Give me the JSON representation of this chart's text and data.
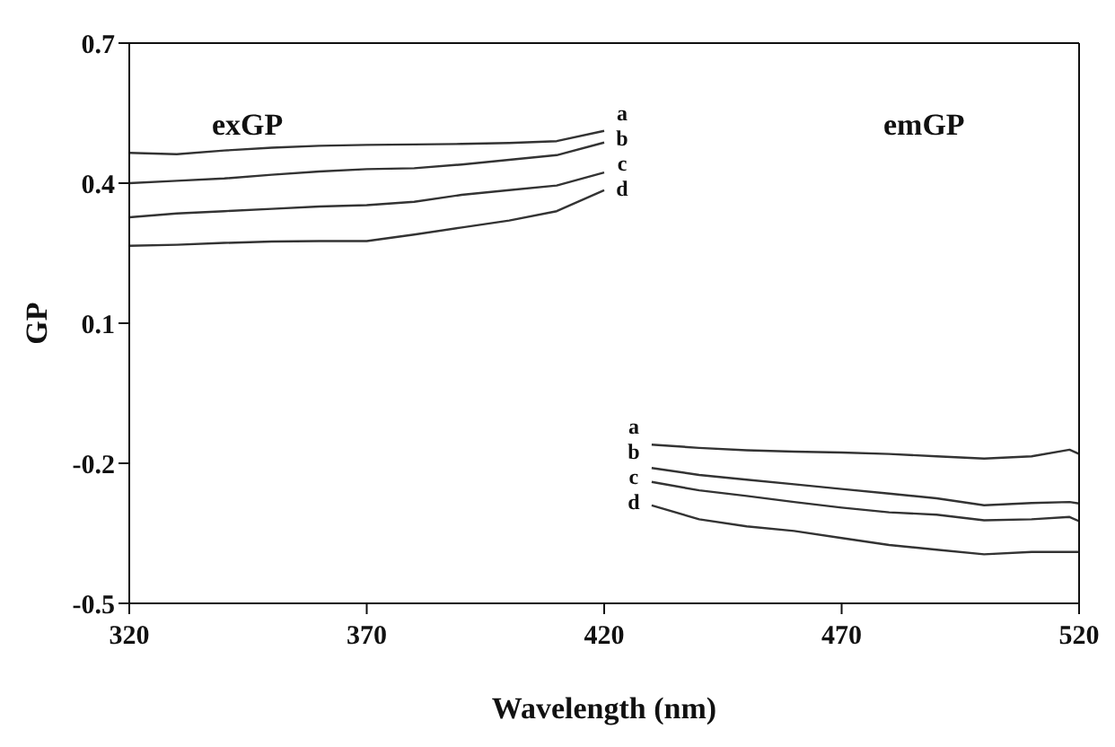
{
  "chart_data": {
    "type": "line",
    "xlabel": "Wavelength (nm)",
    "ylabel": "GP",
    "xlim": [
      320,
      520
    ],
    "ylim": [
      -0.5,
      0.7
    ],
    "xticks": [
      320,
      370,
      420,
      470,
      520
    ],
    "yticks": [
      -0.5,
      -0.2,
      0.1,
      0.4,
      0.7
    ],
    "marker": "none",
    "line_style": "solid",
    "annotations": [
      "exGP",
      "emGP"
    ],
    "series": [
      {
        "name": "a",
        "color": "#333333",
        "x": [
          320,
          330,
          340,
          350,
          360,
          370,
          380,
          390,
          400,
          410,
          420
        ],
        "values": [
          0.465,
          0.462,
          0.47,
          0.476,
          0.48,
          0.482,
          0.483,
          0.484,
          0.486,
          0.49,
          0.512
        ]
      },
      {
        "name": "b",
        "color": "#333333",
        "x": [
          320,
          330,
          340,
          350,
          360,
          370,
          380,
          390,
          400,
          410,
          420
        ],
        "values": [
          0.4,
          0.405,
          0.41,
          0.418,
          0.425,
          0.43,
          0.432,
          0.44,
          0.45,
          0.46,
          0.487
        ]
      },
      {
        "name": "c",
        "color": "#333333",
        "x": [
          320,
          330,
          340,
          350,
          360,
          370,
          380,
          390,
          400,
          410,
          420
        ],
        "values": [
          0.327,
          0.335,
          0.34,
          0.345,
          0.35,
          0.353,
          0.36,
          0.375,
          0.385,
          0.395,
          0.423
        ]
      },
      {
        "name": "d",
        "color": "#333333",
        "x": [
          320,
          330,
          340,
          350,
          360,
          370,
          380,
          390,
          400,
          410,
          420
        ],
        "values": [
          0.266,
          0.268,
          0.272,
          0.275,
          0.276,
          0.276,
          0.29,
          0.305,
          0.32,
          0.34,
          0.385
        ]
      },
      {
        "name": "a",
        "color": "#333333",
        "x": [
          430,
          440,
          450,
          460,
          470,
          480,
          490,
          500,
          510,
          518,
          520
        ],
        "values": [
          -0.16,
          -0.167,
          -0.172,
          -0.175,
          -0.177,
          -0.18,
          -0.185,
          -0.19,
          -0.185,
          -0.171,
          -0.18
        ]
      },
      {
        "name": "b",
        "color": "#333333",
        "x": [
          430,
          440,
          450,
          460,
          470,
          480,
          490,
          500,
          510,
          518,
          520
        ],
        "values": [
          -0.21,
          -0.225,
          -0.235,
          -0.245,
          -0.255,
          -0.265,
          -0.275,
          -0.29,
          -0.285,
          -0.283,
          -0.286
        ]
      },
      {
        "name": "c",
        "color": "#333333",
        "x": [
          430,
          440,
          450,
          460,
          470,
          480,
          490,
          500,
          510,
          518,
          520
        ],
        "values": [
          -0.24,
          -0.258,
          -0.27,
          -0.283,
          -0.295,
          -0.305,
          -0.31,
          -0.322,
          -0.32,
          -0.315,
          -0.324
        ]
      },
      {
        "name": "d",
        "color": "#333333",
        "x": [
          430,
          440,
          450,
          460,
          470,
          480,
          490,
          500,
          510,
          518,
          520
        ],
        "values": [
          -0.29,
          -0.32,
          -0.335,
          -0.345,
          -0.36,
          -0.375,
          -0.385,
          -0.395,
          -0.39,
          -0.39,
          -0.39
        ]
      }
    ]
  }
}
